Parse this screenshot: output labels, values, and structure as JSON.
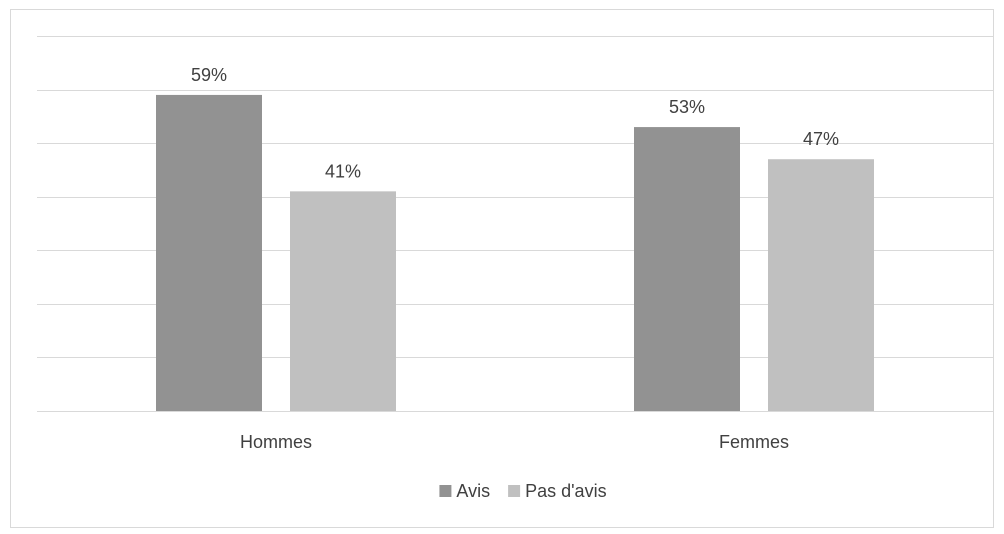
{
  "chart_data": {
    "type": "bar",
    "categories": [
      "Hommes",
      "Femmes"
    ],
    "series": [
      {
        "name": "Avis",
        "values": [
          59,
          53
        ],
        "labels": [
          "59%",
          "53%"
        ],
        "color": "#929292"
      },
      {
        "name": "Pas d'avis",
        "values": [
          41,
          47
        ],
        "labels": [
          "41%",
          "47%"
        ],
        "color": "#c0c0c0"
      }
    ],
    "ylim": [
      0,
      70
    ],
    "gridline_step": 10,
    "grid": true,
    "legend_position": "bottom",
    "gridline_color": "#d9d9d9",
    "axis_color": "#d9d9d9"
  }
}
